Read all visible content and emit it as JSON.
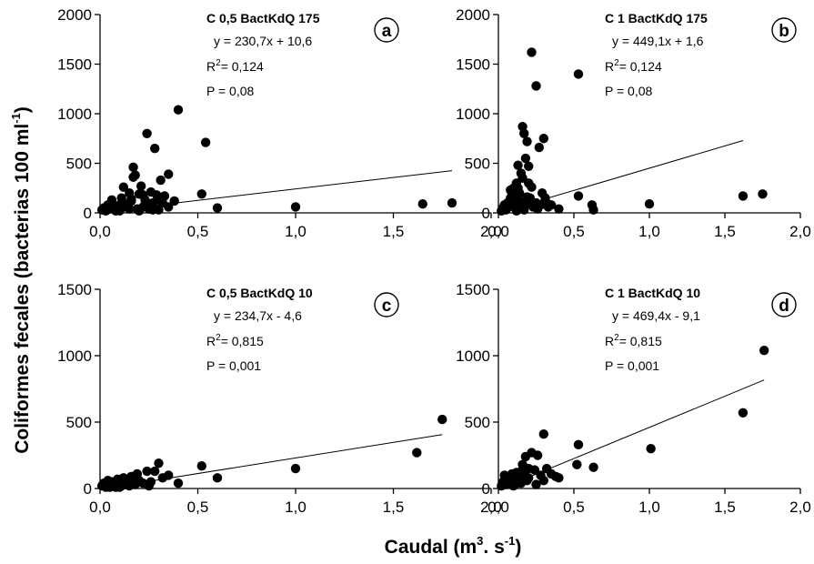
{
  "figure": {
    "ylabel": {
      "main": "Coliformes fecales (bacterias 100 ml",
      "sup": "-1",
      "end": ")"
    },
    "xlabel": {
      "main": "Caudal (m",
      "sup1": "3",
      "mid": ". s",
      "sup2": "-1",
      "end": ")"
    }
  },
  "chart_data": [
    {
      "type": "scatter",
      "panel": "a",
      "title": "C 0,5 BactKdQ 175",
      "equation": "y  = 230,7x + 10,6",
      "r2_prefix": "R",
      "r2_sup": "2",
      "r2_value": "= 0,124",
      "p_text": "P  = 0,08",
      "xlim": [
        0,
        2
      ],
      "ylim": [
        0,
        2000
      ],
      "xticks": [
        0,
        0.5,
        1,
        1.5,
        2
      ],
      "xtick_labels": [
        "0,0",
        "0,5",
        "1,0",
        "1,5",
        "2,0"
      ],
      "yticks": [
        0,
        500,
        1000,
        1500,
        2000
      ],
      "ytick_labels": [
        "0",
        "500",
        "1000",
        "1500",
        "2000"
      ],
      "fit": {
        "slope": 230.7,
        "intercept": 10.6,
        "x_range": [
          0.08,
          1.8
        ]
      },
      "x": [
        0.01,
        0.02,
        0.03,
        0.04,
        0.05,
        0.06,
        0.07,
        0.08,
        0.09,
        0.1,
        0.11,
        0.12,
        0.13,
        0.14,
        0.15,
        0.16,
        0.17,
        0.18,
        0.19,
        0.2,
        0.21,
        0.22,
        0.23,
        0.24,
        0.25,
        0.26,
        0.27,
        0.28,
        0.29,
        0.3,
        0.31,
        0.32,
        0.33,
        0.35,
        0.38,
        0.4,
        0.1,
        0.12,
        0.15,
        0.16,
        0.17,
        0.2,
        0.22,
        0.25,
        0.27,
        0.3,
        0.35,
        0.52,
        0.54,
        0.6,
        1.0,
        1.65,
        1.8
      ],
      "y": [
        30,
        50,
        20,
        80,
        40,
        130,
        60,
        20,
        40,
        80,
        150,
        260,
        60,
        90,
        200,
        120,
        460,
        380,
        40,
        190,
        270,
        180,
        130,
        800,
        80,
        210,
        100,
        650,
        180,
        30,
        330,
        100,
        170,
        390,
        120,
        1040,
        20,
        60,
        40,
        140,
        360,
        20,
        60,
        40,
        30,
        130,
        60,
        190,
        710,
        50,
        60,
        90,
        100
      ]
    },
    {
      "type": "scatter",
      "panel": "b",
      "title": "C 1 BactKdQ 175",
      "equation": "y  = 449,1x + 1,6",
      "r2_prefix": "R",
      "r2_sup": "2",
      "r2_value": "= 0,124",
      "p_text": "P  = 0,08",
      "xlim": [
        0,
        2
      ],
      "ylim": [
        0,
        2000
      ],
      "xticks": [
        0,
        0.5,
        1,
        1.5,
        2
      ],
      "xtick_labels": [
        "0,0",
        "0,5",
        "1,0",
        "1,5",
        "2,0"
      ],
      "yticks": [
        0,
        500,
        1000,
        1500,
        2000
      ],
      "ytick_labels": [
        "0",
        "500",
        "1000",
        "1500",
        "2000"
      ],
      "fit": {
        "slope": 449.1,
        "intercept": 1.6,
        "x_range": [
          0.2,
          1.62
        ]
      },
      "x": [
        0.02,
        0.03,
        0.04,
        0.05,
        0.06,
        0.07,
        0.08,
        0.09,
        0.1,
        0.11,
        0.12,
        0.13,
        0.14,
        0.15,
        0.16,
        0.17,
        0.18,
        0.19,
        0.2,
        0.21,
        0.22,
        0.23,
        0.24,
        0.25,
        0.26,
        0.27,
        0.28,
        0.29,
        0.3,
        0.31,
        0.32,
        0.33,
        0.35,
        0.4,
        0.08,
        0.1,
        0.12,
        0.14,
        0.16,
        0.18,
        0.2,
        0.22,
        0.25,
        0.12,
        0.15,
        0.17,
        0.19,
        0.13,
        0.53,
        0.53,
        0.62,
        0.63,
        1.0,
        1.62,
        1.75
      ],
      "y": [
        20,
        50,
        80,
        30,
        100,
        60,
        150,
        200,
        250,
        100,
        300,
        480,
        200,
        400,
        870,
        800,
        550,
        720,
        300,
        150,
        1620,
        60,
        100,
        1280,
        40,
        660,
        80,
        200,
        750,
        150,
        100,
        60,
        80,
        40,
        230,
        180,
        220,
        120,
        350,
        80,
        470,
        260,
        100,
        20,
        50,
        30,
        160,
        250,
        1400,
        170,
        80,
        30,
        90,
        170,
        190
      ]
    },
    {
      "type": "scatter",
      "panel": "c",
      "title": "C 0,5 BactKdQ 10",
      "equation": "y  = 234,7x - 4,6",
      "r2_prefix": "R",
      "r2_sup": "2",
      "r2_value": "= 0,815",
      "p_text": "P  = 0,001",
      "xlim": [
        0,
        2
      ],
      "ylim": [
        0,
        1500
      ],
      "xticks": [
        0,
        0.5,
        1,
        1.5,
        2
      ],
      "xtick_labels": [
        "0,0",
        "0,5",
        "1,0",
        "1,5",
        "2,0"
      ],
      "yticks": [
        0,
        500,
        1000,
        1500
      ],
      "ytick_labels": [
        "0",
        "500",
        "1000",
        "1500"
      ],
      "fit": {
        "slope": 234.7,
        "intercept": -4.6,
        "x_range": [
          0.05,
          1.75
        ]
      },
      "x": [
        0.01,
        0.02,
        0.03,
        0.04,
        0.05,
        0.06,
        0.07,
        0.08,
        0.09,
        0.1,
        0.11,
        0.12,
        0.13,
        0.14,
        0.15,
        0.16,
        0.17,
        0.18,
        0.19,
        0.2,
        0.22,
        0.24,
        0.26,
        0.28,
        0.3,
        0.32,
        0.35,
        0.4,
        0.52,
        0.6,
        1.0,
        1.62,
        1.75,
        0.05,
        0.1,
        0.15,
        0.25
      ],
      "y": [
        20,
        40,
        10,
        60,
        30,
        50,
        20,
        10,
        70,
        40,
        20,
        80,
        30,
        60,
        40,
        90,
        50,
        30,
        110,
        60,
        40,
        130,
        50,
        130,
        190,
        80,
        100,
        40,
        170,
        80,
        150,
        270,
        520,
        10,
        10,
        20,
        20
      ]
    },
    {
      "type": "scatter",
      "panel": "d",
      "title": "C 1 BactKdQ 10",
      "equation": "y  = 469,4x - 9,1",
      "r2_prefix": "R",
      "r2_sup": "2",
      "r2_value": "= 0,815",
      "p_text": "P  = 0,001",
      "xlim": [
        0,
        2
      ],
      "ylim": [
        0,
        1500
      ],
      "xticks": [
        0,
        0.5,
        1,
        1.5,
        2
      ],
      "xtick_labels": [
        "0,0",
        "0,5",
        "1,0",
        "1,5",
        "2,0"
      ],
      "yticks": [
        0,
        500,
        1000,
        1500
      ],
      "ytick_labels": [
        "0",
        "500",
        "1000",
        "1500"
      ],
      "fit": {
        "slope": 469.4,
        "intercept": -9.1,
        "x_range": [
          0.05,
          1.76
        ]
      },
      "x": [
        0.02,
        0.03,
        0.04,
        0.05,
        0.06,
        0.07,
        0.08,
        0.09,
        0.1,
        0.11,
        0.12,
        0.13,
        0.14,
        0.15,
        0.16,
        0.17,
        0.18,
        0.19,
        0.2,
        0.22,
        0.24,
        0.26,
        0.28,
        0.3,
        0.32,
        0.35,
        0.4,
        0.52,
        0.53,
        0.63,
        1.01,
        1.62,
        1.76,
        0.1,
        0.15,
        0.2,
        0.25,
        0.3,
        0.38
      ],
      "y": [
        20,
        50,
        100,
        30,
        80,
        60,
        40,
        110,
        70,
        30,
        120,
        90,
        50,
        130,
        180,
        100,
        240,
        60,
        150,
        270,
        140,
        250,
        100,
        410,
        150,
        110,
        80,
        180,
        330,
        160,
        300,
        570,
        1040,
        20,
        40,
        80,
        30,
        60,
        90
      ]
    }
  ]
}
